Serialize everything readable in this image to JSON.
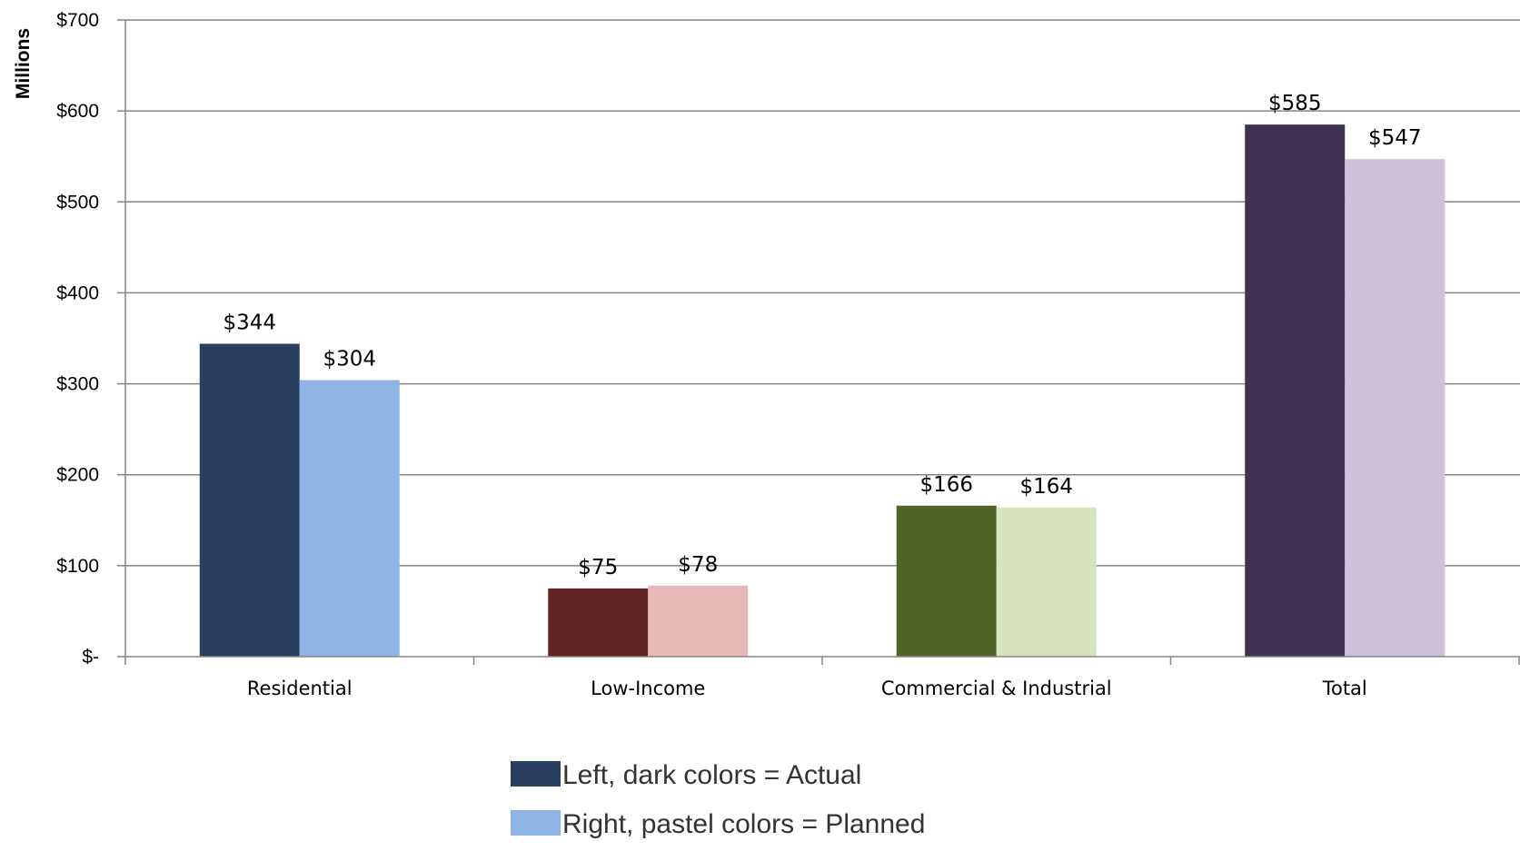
{
  "chart_data": {
    "type": "bar",
    "title": "",
    "xlabel": "",
    "ylabel": "Millions",
    "ylim": [
      0,
      700
    ],
    "yticks": [
      0,
      100,
      200,
      300,
      400,
      500,
      600,
      700
    ],
    "ytick_labels": [
      "$-",
      "$100",
      "$200",
      "$300",
      "$400",
      "$500",
      "$600",
      "$700"
    ],
    "grid": true,
    "categories": [
      "Residential",
      "Low-Income",
      "Commercial & Industrial",
      "Total"
    ],
    "series": [
      {
        "values": [
          344,
          75,
          166,
          585
        ],
        "labels": [
          "$344",
          "$75",
          "$166",
          "$585"
        ],
        "colors": [
          "#283F60",
          "#612424",
          "#4F6228",
          "#3F3151"
        ]
      },
      {
        "values": [
          304,
          78,
          164,
          547
        ],
        "labels": [
          "$304",
          "$78",
          "$164",
          "$547"
        ],
        "colors": [
          "#8FB4E3",
          "#E6B8B7",
          "#D8E4BC",
          "#CCC0DA"
        ]
      }
    ],
    "legend": {
      "placement": "bottom",
      "entries": [
        {
          "label": "Left, dark colors = Actual",
          "color": "#283F60"
        },
        {
          "label": "Right, pastel colors = Planned",
          "color": "#8FB4E3"
        }
      ]
    },
    "colors": {
      "grid": "#868686",
      "axis": "#868686"
    }
  }
}
